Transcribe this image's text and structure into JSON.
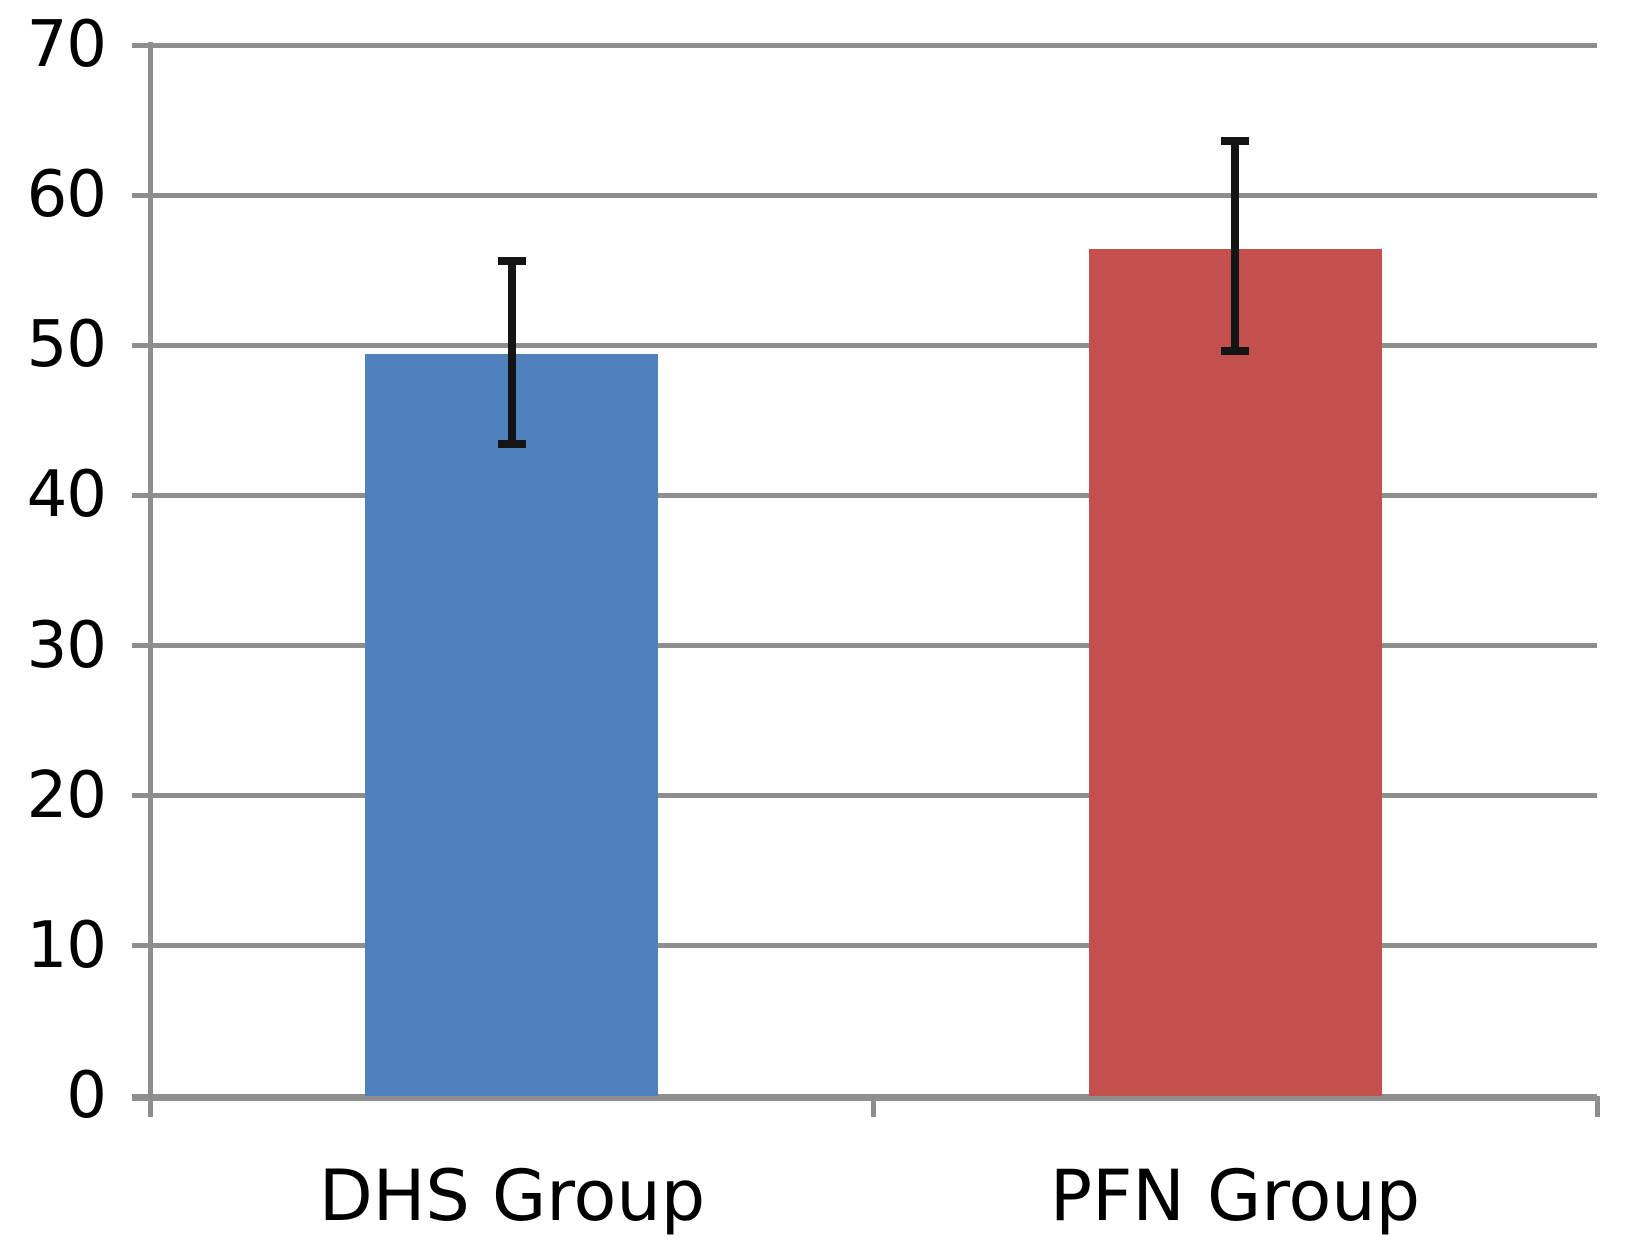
{
  "chart_data": {
    "type": "bar",
    "categories": [
      "DHS Group",
      "PFN Group"
    ],
    "values": [
      49.4,
      56.4
    ],
    "error_bars": {
      "low": [
        43.4,
        49.6
      ],
      "high": [
        55.6,
        63.6
      ]
    },
    "bar_colors": [
      "#4F81BD",
      "#C4504E"
    ],
    "title": "",
    "xlabel": "",
    "ylabel": "",
    "ylim": [
      0,
      70
    ],
    "yticks": [
      0,
      10,
      20,
      30,
      40,
      50,
      60,
      70
    ],
    "grid": true,
    "legend": false
  },
  "style_colors": {
    "gridline": "#8E8E8E",
    "axis": "#8E8E8E",
    "error_bar": "#141414",
    "background": "#FFFFFF",
    "label_text": "#000000"
  }
}
